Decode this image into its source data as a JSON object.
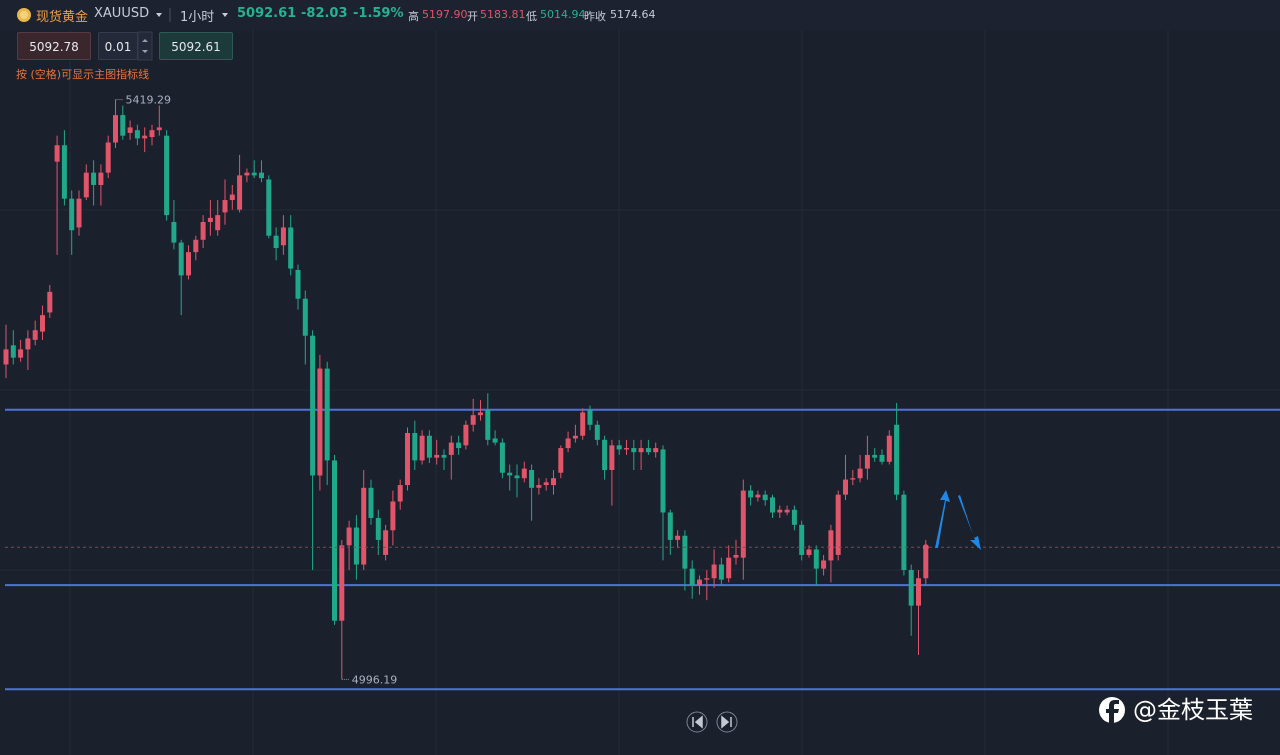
{
  "header": {
    "name": "现货黄金",
    "symbol": "XAUUSD",
    "interval": "1小时",
    "price": "5092.61",
    "change": "-82.03",
    "change_pct": "-1.59%",
    "high_label": "高",
    "high": "5197.90",
    "open_label": "开",
    "open": "5183.81",
    "low_label": "低",
    "low": "5014.94",
    "prev_label": "昨收",
    "prev": "5174.64"
  },
  "order_panel": {
    "sell": "5092.78",
    "lot": "0.01",
    "buy": "5092.61",
    "hint": "按 (空格)可显示主图指标线"
  },
  "watermark": "@金枝玉葉",
  "chart_data": {
    "type": "candlestick",
    "up_color": "#e0556a",
    "down_color": "#1fa98a",
    "hline_color": "#4f72d8",
    "ylim": [
      4941,
      5492
    ],
    "hlines": [
      5193,
      5065,
      4989
    ],
    "open": [
      5226,
      5240,
      5231,
      5237,
      5244,
      5250,
      5264,
      5374,
      5386,
      5347,
      5326,
      5348,
      5366,
      5357,
      5366,
      5388,
      5408,
      5395,
      5397,
      5391,
      5392,
      5397,
      5393,
      5330,
      5315,
      5291,
      5308,
      5317,
      5330,
      5324,
      5337,
      5346,
      5339,
      5364,
      5366,
      5366,
      5361,
      5320,
      5313,
      5326,
      5295,
      5274,
      5247,
      5145,
      5223,
      5156,
      5039,
      5094,
      5107,
      5080,
      5136,
      5114,
      5087,
      5105,
      5126,
      5138,
      5176,
      5156,
      5174,
      5158,
      5160,
      5160,
      5169,
      5167,
      5182,
      5189,
      5193,
      5172,
      5169,
      5147,
      5145,
      5143,
      5149,
      5136,
      5138,
      5138,
      5147,
      5165,
      5172,
      5174,
      5193,
      5182,
      5171,
      5149,
      5167,
      5164,
      5165,
      5162,
      5165,
      5162,
      5164,
      5118,
      5098,
      5101,
      5077,
      5065,
      5069,
      5070,
      5080,
      5070,
      5085,
      5085,
      5134,
      5129,
      5131,
      5129,
      5118,
      5118,
      5120,
      5109,
      5087,
      5091,
      5077,
      5083,
      5087,
      5131,
      5142,
      5143,
      5150,
      5160,
      5160,
      5155,
      5182,
      5131,
      5076,
      5050,
      5070
    ],
    "high": [
      5255,
      5251,
      5244,
      5251,
      5258,
      5269,
      5284,
      5393,
      5397,
      5353,
      5353,
      5372,
      5375,
      5372,
      5393,
      5419.29,
      5415,
      5404,
      5401,
      5399,
      5401,
      5415,
      5397,
      5346,
      5317,
      5313,
      5320,
      5335,
      5346,
      5346,
      5361,
      5357,
      5379,
      5369,
      5375,
      5375,
      5364,
      5326,
      5335,
      5335,
      5299,
      5280,
      5251,
      5233,
      5228,
      5160,
      5098,
      5112,
      5116,
      5149,
      5142,
      5120,
      5109,
      5134,
      5142,
      5180,
      5185,
      5178,
      5178,
      5171,
      5164,
      5174,
      5174,
      5185,
      5201,
      5200,
      5205,
      5178,
      5172,
      5153,
      5153,
      5155,
      5153,
      5143,
      5143,
      5149,
      5167,
      5177,
      5182,
      5194,
      5196,
      5185,
      5174,
      5171,
      5171,
      5171,
      5171,
      5171,
      5171,
      5169,
      5167,
      5120,
      5105,
      5105,
      5083,
      5072,
      5076,
      5091,
      5085,
      5094,
      5098,
      5142,
      5138,
      5134,
      5134,
      5131,
      5123,
      5123,
      5123,
      5112,
      5094,
      5094,
      5087,
      5109,
      5134,
      5160,
      5149,
      5160,
      5174,
      5165,
      5164,
      5178,
      5198,
      5134,
      5080,
      5076,
      5098
    ],
    "low": [
      5216,
      5226,
      5228,
      5222,
      5240,
      5244,
      5260,
      5306,
      5342,
      5306,
      5320,
      5346,
      5342,
      5342,
      5362,
      5384,
      5390,
      5390,
      5386,
      5381,
      5386,
      5393,
      5331,
      5310,
      5262,
      5288,
      5302,
      5311,
      5320,
      5320,
      5328,
      5339,
      5337,
      5359,
      5362,
      5359,
      5318,
      5302,
      5306,
      5291,
      5266,
      5226,
      5076,
      5134,
      5138,
      5036,
      4996.19,
      5076,
      5069,
      5076,
      5109,
      5087,
      5083,
      5094,
      5120,
      5134,
      5149,
      5153,
      5154,
      5153,
      5149,
      5142,
      5160,
      5164,
      5177,
      5185,
      5167,
      5167,
      5143,
      5134,
      5129,
      5140,
      5112,
      5131,
      5134,
      5131,
      5143,
      5162,
      5169,
      5171,
      5178,
      5167,
      5142,
      5123,
      5160,
      5160,
      5149,
      5149,
      5160,
      5158,
      5083,
      5087,
      5092,
      5061,
      5055,
      5058,
      5054,
      5063,
      5065,
      5067,
      5080,
      5069,
      5123,
      5126,
      5123,
      5114,
      5114,
      5116,
      5105,
      5083,
      5085,
      5065,
      5072,
      5067,
      5083,
      5127,
      5138,
      5140,
      5142,
      5155,
      5153,
      5153,
      5127,
      5072,
      5028,
      5014,
      5065
    ],
    "close": [
      5237,
      5231,
      5237,
      5245,
      5251,
      5262,
      5279,
      5386,
      5347,
      5324,
      5347,
      5366,
      5357,
      5366,
      5388,
      5408,
      5393,
      5399,
      5391,
      5393,
      5397,
      5399,
      5335,
      5315,
      5291,
      5308,
      5317,
      5330,
      5333,
      5335,
      5346,
      5350,
      5364,
      5366,
      5364,
      5362,
      5320,
      5311,
      5326,
      5296,
      5274,
      5247,
      5145,
      5223,
      5156,
      5039,
      5094,
      5107,
      5080,
      5136,
      5114,
      5098,
      5105,
      5126,
      5138,
      5176,
      5156,
      5174,
      5158,
      5160,
      5158,
      5169,
      5165,
      5182,
      5189,
      5191,
      5171,
      5169,
      5147,
      5145,
      5143,
      5150,
      5136,
      5138,
      5140,
      5143,
      5165,
      5172,
      5174,
      5191,
      5182,
      5171,
      5149,
      5167,
      5164,
      5165,
      5162,
      5165,
      5162,
      5165,
      5118,
      5098,
      5101,
      5077,
      5065,
      5069,
      5070,
      5080,
      5069,
      5085,
      5087,
      5134,
      5129,
      5131,
      5127,
      5118,
      5120,
      5120,
      5109,
      5087,
      5091,
      5077,
      5083,
      5105,
      5131,
      5142,
      5143,
      5150,
      5160,
      5158,
      5155,
      5174,
      5131,
      5076,
      5050,
      5070,
      5092.61
    ]
  }
}
